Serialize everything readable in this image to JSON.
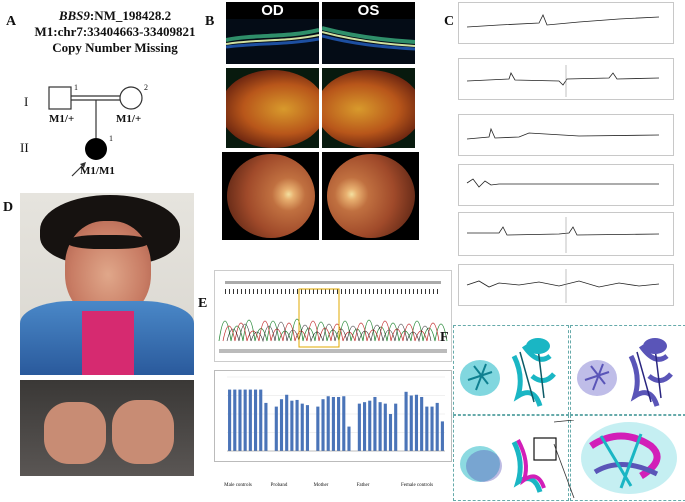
{
  "panels": {
    "A": "A",
    "B": "B",
    "C": "C",
    "D": "D",
    "E": "E",
    "F": "F"
  },
  "pedigree": {
    "gene_italic": "BBS9",
    "gene_rest": ":NM_198428.2",
    "locus": "M1:chr7:33404663-33409821",
    "variant": "Copy Number Missing",
    "gen1": "I",
    "gen2": "II",
    "father_num": "1",
    "mother_num": "2",
    "proband_num": "1",
    "father_geno": "M1/+",
    "mother_geno": "M1/+",
    "proband_geno": "M1/M1"
  },
  "eyes": {
    "od": "OD",
    "os": "OS"
  },
  "chart_data": {
    "type": "bar",
    "groups": [
      "Male controls",
      "Proband",
      "Mother",
      "Father",
      "Female controls"
    ],
    "values": [
      0.83,
      0.83,
      0.83,
      0.83,
      0.83,
      0.83,
      0.83,
      0.65,
      0.6,
      0.7,
      0.76,
      0.68,
      0.69,
      0.64,
      0.62,
      0.6,
      0.7,
      0.74,
      0.73,
      0.73,
      0.74,
      0.33,
      0.64,
      0.66,
      0.68,
      0.73,
      0.66,
      0.64,
      0.5,
      0.64,
      0.8,
      0.75,
      0.76,
      0.73,
      0.6,
      0.6,
      0.65,
      0.4
    ],
    "group_sizes": [
      8,
      7,
      7,
      8,
      8
    ],
    "ylim": [
      0,
      1
    ],
    "color": "#4a74b8"
  },
  "colors": {
    "bar": "#4a74b8",
    "proband_fill": "#000000",
    "cyan": "#1ab6c4",
    "purple": "#5a55b8",
    "magenta": "#d21fb8"
  }
}
